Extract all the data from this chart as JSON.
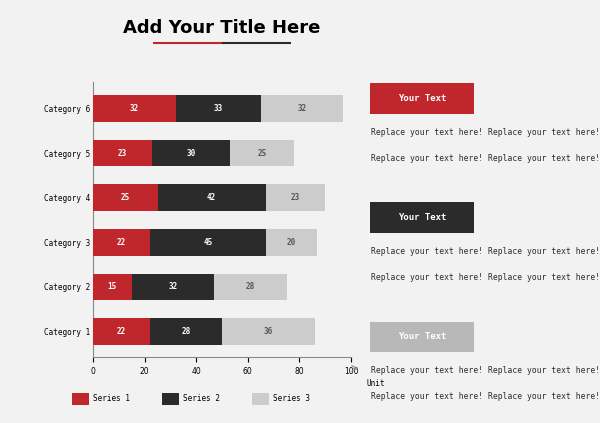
{
  "title": "Add Your Title Here",
  "title_fontsize": 13,
  "background_color": "#f2f2f2",
  "categories": [
    "Category 1",
    "Category 2",
    "Category 3",
    "Category 4",
    "Category 5",
    "Category 6"
  ],
  "series1": [
    22,
    15,
    22,
    25,
    23,
    32
  ],
  "series2": [
    28,
    32,
    45,
    42,
    30,
    33
  ],
  "series3": [
    36,
    28,
    20,
    23,
    25,
    32
  ],
  "series1_color": "#c0272d",
  "series2_color": "#2b2b2b",
  "series3_color": "#cccccc",
  "series1_label": "Series 1",
  "series2_label": "Series 2",
  "series3_label": "Series 3",
  "xlabel": "Unit",
  "xlim": [
    0,
    100
  ],
  "xticks": [
    0,
    20,
    40,
    60,
    80,
    100
  ],
  "text_color_white": "#ffffff",
  "text_color_dark": "#555555",
  "badge_colors": [
    "#c0272d",
    "#2b2b2b",
    "#b8b8b8"
  ],
  "badge_text": "Your Text",
  "replace_text": "Replace your text here!",
  "font_family": "monospace",
  "title_underline_red": "#c0272d",
  "title_underline_dark": "#2b2b2b"
}
